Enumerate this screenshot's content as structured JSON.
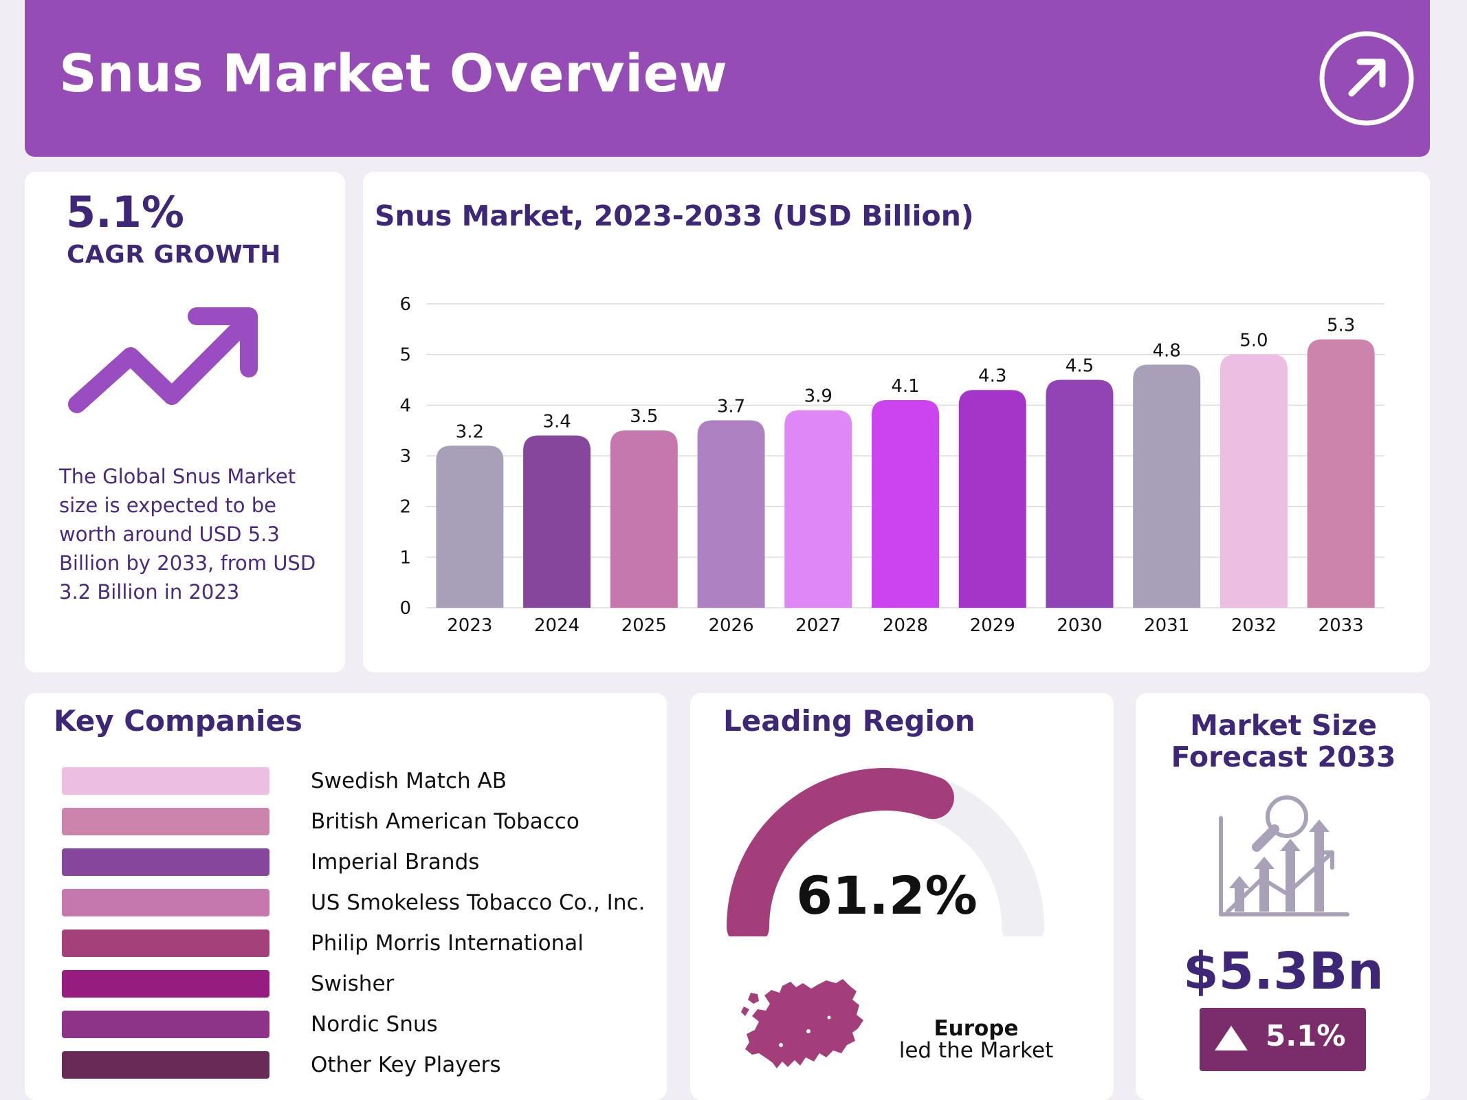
{
  "header": {
    "title": "Snus Market Overview",
    "icon": "arrow-up-right-circle-icon"
  },
  "cagr": {
    "value": "5.1%",
    "label": "CAGR GROWTH",
    "icon": "trend-up-arrow-icon",
    "description": "The Global Snus Market size is expected to be worth around USD 5.3 Billion by 2033, from USD 3.2 Billion in 2023"
  },
  "chart_data": {
    "type": "bar",
    "title": "Snus Market, 2023-2033 (USD Billion)",
    "xlabel": "",
    "ylabel": "",
    "categories": [
      "2023",
      "2024",
      "2025",
      "2026",
      "2027",
      "2028",
      "2029",
      "2030",
      "2031",
      "2032",
      "2033"
    ],
    "values": [
      3.2,
      3.4,
      3.5,
      3.7,
      3.9,
      4.1,
      4.3,
      4.5,
      4.8,
      5.0,
      5.3
    ],
    "value_labels": [
      "3.2",
      "3.4",
      "3.5",
      "3.7",
      "3.9",
      "4.1",
      "4.3",
      "4.5",
      "4.8",
      "5.0",
      "5.3"
    ],
    "colors": [
      "#a7a0b8",
      "#86469c",
      "#c578ac",
      "#ae82c2",
      "#df88f5",
      "#cc44f0",
      "#a535c8",
      "#9244b4",
      "#a7a0b8",
      "#ecbfe2",
      "#cc84ac"
    ],
    "ylim": [
      0,
      6
    ],
    "yticks": [
      "0",
      "1",
      "2",
      "3",
      "4",
      "5",
      "6"
    ],
    "grid": true,
    "legend": "none"
  },
  "companies": {
    "title": "Key Companies",
    "items": [
      {
        "name": "Swedish Match AB",
        "color": "#ecbfe2"
      },
      {
        "name": "British American Tobacco",
        "color": "#cc84ac"
      },
      {
        "name": "Imperial Brands",
        "color": "#86469c"
      },
      {
        "name": "US Smokeless Tobacco Co., Inc.",
        "color": "#c578ac"
      },
      {
        "name": "Philip Morris International",
        "color": "#a5417a"
      },
      {
        "name": "Swisher",
        "color": "#971c80"
      },
      {
        "name": "Nordic Snus",
        "color": "#8e3488"
      },
      {
        "name": "Other Key Players",
        "color": "#6a2a58"
      }
    ]
  },
  "region": {
    "title": "Leading Region",
    "share_label": "61.2%",
    "share": 0.612,
    "gauge_color": "#a43e7b",
    "gauge_track_color": "#efeef2",
    "name": "Europe",
    "caption": "led the Market",
    "map_icon": "europe-map-icon"
  },
  "market_size": {
    "title_line1": "Market Size",
    "title_line2": "Forecast 2033",
    "icon": "growth-chart-magnifier-icon",
    "value": "$5.3Bn",
    "growth": "5.1%",
    "growth_icon": "triangle-up-icon"
  }
}
